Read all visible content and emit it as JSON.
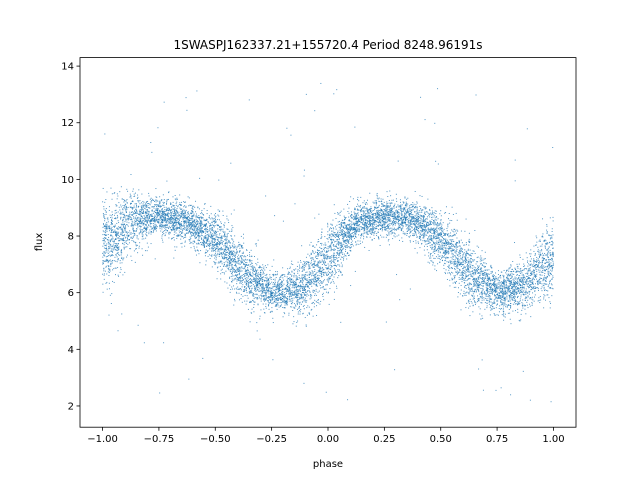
{
  "chart_data": {
    "type": "scatter",
    "title": "1SWASPJ162337.21+155720.4 Period 8248.96191s",
    "xlabel": "phase",
    "ylabel": "flux",
    "xlim": [
      -1.1,
      1.1
    ],
    "ylim": [
      1.25,
      14.3
    ],
    "xticks": [
      -1.0,
      -0.75,
      -0.5,
      -0.25,
      0.0,
      0.25,
      0.5,
      0.75,
      1.0
    ],
    "xtick_labels": [
      "−1.00",
      "−0.75",
      "−0.50",
      "−0.25",
      "0.00",
      "0.25",
      "0.50",
      "0.75",
      "1.00"
    ],
    "yticks": [
      2,
      4,
      6,
      8,
      10,
      12,
      14
    ],
    "ytick_labels": [
      "2",
      "4",
      "6",
      "8",
      "10",
      "12",
      "14"
    ],
    "grid": false,
    "legend": "none",
    "marker_color": "#1f77b4",
    "series": [
      {
        "description_of_trend": "phase-folded light curve, sinusoidal with two cycles over phase -1 to 1",
        "phase": [
          -1.0,
          -0.875,
          -0.75,
          -0.625,
          -0.5,
          -0.375,
          -0.25,
          -0.125,
          0.0,
          0.125,
          0.25,
          0.375,
          0.5,
          0.625,
          0.75,
          0.875,
          1.0
        ],
        "flux_center": [
          7.6,
          8.5,
          8.7,
          8.5,
          7.9,
          6.7,
          6.0,
          6.1,
          7.2,
          8.5,
          8.7,
          8.6,
          7.9,
          6.7,
          6.0,
          6.3,
          7.3
        ],
        "flux_spread": [
          1.4,
          1.0,
          0.6,
          0.6,
          0.8,
          1.0,
          0.6,
          0.8,
          1.2,
          0.6,
          0.6,
          0.6,
          0.9,
          1.0,
          0.6,
          0.8,
          1.2
        ]
      }
    ]
  }
}
